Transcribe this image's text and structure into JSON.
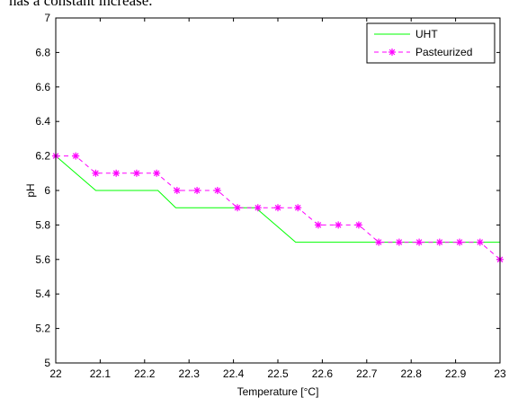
{
  "header_text": "has a constant increase.",
  "chart_data": {
    "type": "line",
    "xlabel": "Temperature [°C]",
    "ylabel": "pH",
    "xlim": [
      22,
      23
    ],
    "ylim": [
      5,
      7
    ],
    "xticks": [
      22,
      22.1,
      22.2,
      22.3,
      22.4,
      22.5,
      22.6,
      22.7,
      22.8,
      22.9,
      23
    ],
    "xtick_labels": [
      "22",
      "22.1",
      "22.2",
      "22.3",
      "22.4",
      "22.5",
      "22.6",
      "22.7",
      "22.8",
      "22.9",
      "23"
    ],
    "yticks": [
      5,
      5.2,
      5.4,
      5.6,
      5.8,
      6,
      6.2,
      6.4,
      6.6,
      6.8,
      7
    ],
    "ytick_labels": [
      "5",
      "5.2",
      "5.4",
      "5.6",
      "5.8",
      "6",
      "6.2",
      "6.4",
      "6.6",
      "6.8",
      "7"
    ],
    "grid": false,
    "legend_position": "top-right",
    "series": [
      {
        "name": "UHT",
        "color": "#00ff00",
        "style": "solid",
        "marker": "none",
        "x": [
          22,
          22.09,
          22.23,
          22.27,
          22.41,
          22.45,
          22.54,
          23
        ],
        "y": [
          6.2,
          6.0,
          6.0,
          5.9,
          5.9,
          5.9,
          5.7,
          5.7
        ]
      },
      {
        "name": "Pasteurized",
        "color": "#ff00ff",
        "style": "dashed",
        "marker": "star",
        "x": [
          22,
          22.045,
          22.09,
          22.136,
          22.182,
          22.227,
          22.273,
          22.318,
          22.364,
          22.409,
          22.455,
          22.5,
          22.545,
          22.591,
          22.636,
          22.682,
          22.727,
          22.773,
          22.818,
          22.864,
          22.909,
          22.955,
          23
        ],
        "y": [
          6.2,
          6.2,
          6.1,
          6.1,
          6.1,
          6.1,
          6.0,
          6.0,
          6.0,
          5.9,
          5.9,
          5.9,
          5.9,
          5.8,
          5.8,
          5.8,
          5.7,
          5.7,
          5.7,
          5.7,
          5.7,
          5.7,
          5.6
        ]
      }
    ]
  }
}
